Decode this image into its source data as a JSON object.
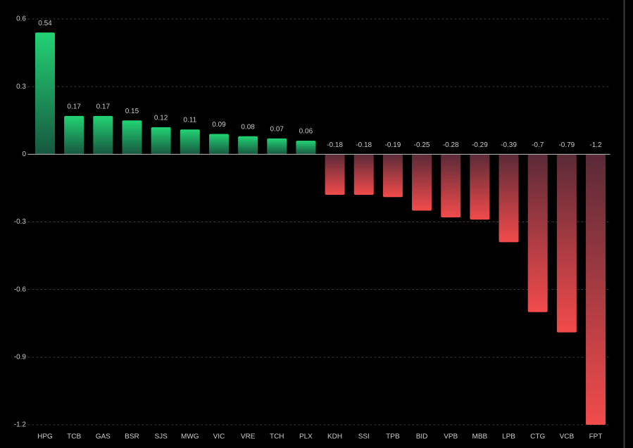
{
  "chart_data": {
    "type": "bar",
    "categories": [
      "HPG",
      "TCB",
      "GAS",
      "BSR",
      "SJS",
      "MWG",
      "VIC",
      "VRE",
      "TCH",
      "PLX",
      "KDH",
      "SSI",
      "TPB",
      "BID",
      "VPB",
      "MBB",
      "LPB",
      "CTG",
      "VCB",
      "FPT"
    ],
    "values": [
      0.54,
      0.17,
      0.17,
      0.15,
      0.12,
      0.11,
      0.09,
      0.08,
      0.07,
      0.06,
      -0.18,
      -0.18,
      -0.19,
      -0.25,
      -0.28,
      -0.29,
      -0.39,
      -0.7,
      -0.79,
      -1.2
    ],
    "ylim": [
      -1.2,
      0.6
    ],
    "yticks": [
      0.6,
      0.3,
      0,
      -0.3,
      -0.6,
      -0.9,
      -1.2
    ],
    "grid": true,
    "colors": {
      "positive": [
        "#22d374",
        "#17573f"
      ],
      "negative": [
        "#5a2a37",
        "#f24b4b"
      ]
    }
  }
}
